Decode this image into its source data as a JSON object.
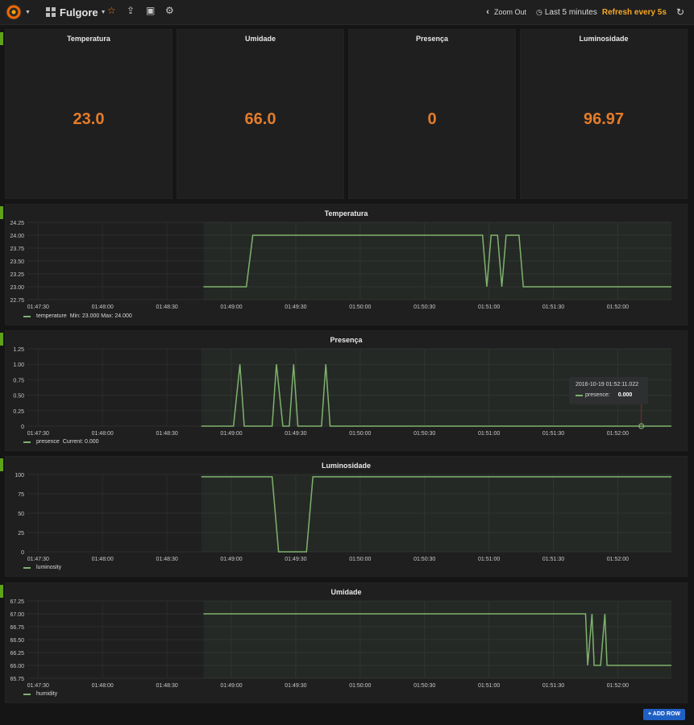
{
  "app": {
    "dashboard_title": "Fulgore",
    "logo_icon": "grafana-logo-icon",
    "zoom_out_label": "Zoom Out",
    "time_range_label": "Last 5 minutes",
    "refresh_label": "Refresh every 5s",
    "accent_color": "#f5a823",
    "add_row_label": "+ ADD ROW"
  },
  "stats": [
    {
      "title": "Temperatura",
      "value": "23.0"
    },
    {
      "title": "Umidade",
      "value": "66.0"
    },
    {
      "title": "Presença",
      "value": "0"
    },
    {
      "title": "Luminosidade",
      "value": "96.97"
    }
  ],
  "x_ticks": [
    "01:47:30",
    "01:48:00",
    "01:48:30",
    "01:49:00",
    "01:49:30",
    "01:50:00",
    "01:50:30",
    "01:51:00",
    "01:51:30",
    "01:52:00"
  ],
  "graphs": {
    "temperature": {
      "title": "Temperatura",
      "y_ticks": [
        "24.25",
        "24.00",
        "23.75",
        "23.50",
        "23.25",
        "23.00",
        "22.75"
      ],
      "legend_name": "temperature",
      "legend_extra": "Min: 23.000  Max: 24.000"
    },
    "presence": {
      "title": "Presença",
      "y_ticks": [
        "1.25",
        "1.00",
        "0.75",
        "0.50",
        "0.25",
        "0"
      ],
      "legend_name": "presence",
      "legend_extra": "Current: 0.000",
      "tooltip_time": "2016-10-19 01:52:11.022",
      "tooltip_series": "presence:",
      "tooltip_value": "0.000"
    },
    "luminosity": {
      "title": "Luminosidade",
      "y_ticks": [
        "100",
        "75",
        "50",
        "25",
        "0"
      ],
      "legend_name": "luminosity"
    },
    "humidity": {
      "title": "Umidade",
      "y_ticks": [
        "67.25",
        "67.00",
        "66.75",
        "66.50",
        "66.25",
        "66.00",
        "65.75"
      ],
      "legend_name": "humidity"
    }
  },
  "chart_data": [
    {
      "type": "line",
      "title": "Temperatura",
      "x_range": [
        "01:47:25",
        "01:52:25"
      ],
      "ylim": [
        22.75,
        24.25
      ],
      "color": "#7eb26d",
      "series": [
        {
          "name": "temperature",
          "x": [
            "01:48:47",
            "01:49:07",
            "01:49:10",
            "01:50:57",
            "01:50:59",
            "01:51:01",
            "01:51:04",
            "01:51:06",
            "01:51:08",
            "01:51:11",
            "01:51:14",
            "01:51:16",
            "01:52:25"
          ],
          "values": [
            23.0,
            23.0,
            24.0,
            24.0,
            23.0,
            24.0,
            24.0,
            23.0,
            24.0,
            24.0,
            24.0,
            23.0,
            23.0
          ]
        }
      ]
    },
    {
      "type": "line",
      "title": "Presença",
      "x_range": [
        "01:47:25",
        "01:52:25"
      ],
      "ylim": [
        0,
        1.25
      ],
      "color": "#7eb26d",
      "series": [
        {
          "name": "presence",
          "x": [
            "01:48:46",
            "01:49:01",
            "01:49:04",
            "01:49:06",
            "01:49:19",
            "01:49:21",
            "01:49:24",
            "01:49:27",
            "01:49:29",
            "01:49:31",
            "01:49:42",
            "01:49:44",
            "01:49:46",
            "01:52:25"
          ],
          "values": [
            0,
            0,
            1,
            0,
            0,
            1,
            0,
            0,
            1,
            0,
            0,
            1,
            0,
            0
          ]
        }
      ]
    },
    {
      "type": "area",
      "title": "Luminosidade",
      "x_range": [
        "01:47:25",
        "01:52:25"
      ],
      "ylim": [
        0,
        100
      ],
      "color": "#7eb26d",
      "series": [
        {
          "name": "luminosity",
          "x": [
            "01:48:46",
            "01:49:19",
            "01:49:22",
            "01:49:35",
            "01:49:38",
            "01:52:25"
          ],
          "values": [
            97,
            97,
            0,
            0,
            97,
            97
          ]
        }
      ]
    },
    {
      "type": "area",
      "title": "Umidade",
      "x_range": [
        "01:47:25",
        "01:52:25"
      ],
      "ylim": [
        65.75,
        67.25
      ],
      "color": "#7eb26d",
      "series": [
        {
          "name": "humidity",
          "x": [
            "01:48:47",
            "01:51:45",
            "01:51:46",
            "01:51:48",
            "01:51:49",
            "01:51:52",
            "01:51:54",
            "01:51:55",
            "01:52:25"
          ],
          "values": [
            67,
            67,
            66,
            67,
            66,
            66,
            67,
            66,
            66
          ]
        }
      ]
    }
  ]
}
